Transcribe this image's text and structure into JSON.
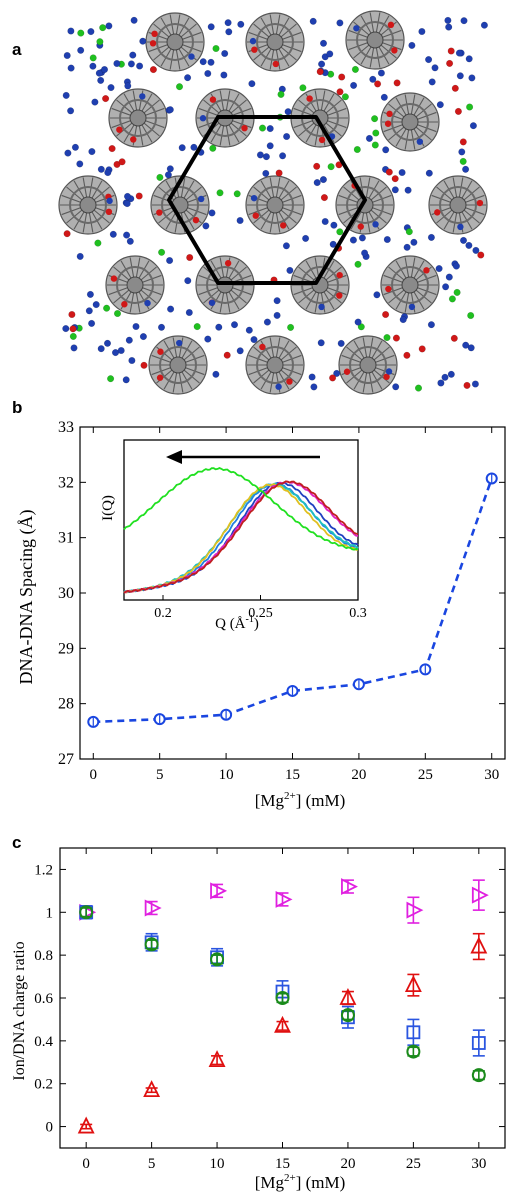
{
  "panels": {
    "a": "a",
    "b": "b",
    "c": "c"
  },
  "colors": {
    "dna": "#8a8a8a",
    "ion_blue": "#1f3fb0",
    "ion_red": "#d01818",
    "ion_green": "#1fc01f",
    "hexagon": "#000000",
    "panel_b_line": "#1a46e0",
    "series_red": "#e01010",
    "series_blue": "#2a55e0",
    "series_green": "#1a8a1a",
    "series_magenta": "#e020e0"
  },
  "chart_data": [
    {
      "panel": "b",
      "type": "line",
      "xlabel": "[Mg2+] (mM)",
      "xlabel_parts": {
        "pre": "[Mg",
        "sup": "2+",
        "post": "] (mM)"
      },
      "ylabel": "DNA-DNA Spacing (Å)",
      "x": [
        0,
        5,
        10,
        15,
        20,
        25,
        30
      ],
      "y": [
        27.67,
        27.72,
        27.8,
        28.23,
        28.35,
        28.62,
        32.07
      ],
      "xlim": [
        -1,
        31
      ],
      "ylim": [
        27,
        33
      ],
      "xticks": [
        0,
        5,
        10,
        15,
        20,
        25,
        30
      ],
      "yticks": [
        27,
        28,
        29,
        30,
        31,
        32,
        33
      ],
      "marker": "circle",
      "line_style": "dashed",
      "inset": {
        "type": "line",
        "xlabel": "Q (Å-1)",
        "xlabel_parts": {
          "pre": "Q (Å",
          "sup": "-1",
          "post": ")"
        },
        "ylabel": "I(Q)",
        "xlim": [
          0.18,
          0.3
        ],
        "xticks": [
          0.2,
          0.25,
          0.3
        ],
        "xtick_labels": [
          "0.2",
          "0.25",
          "0.3"
        ],
        "annotation": "arrow pointing left (toward lower Q)",
        "series": [
          {
            "color": "#2040c0",
            "peak": 0.259,
            "width": 0.02
          },
          {
            "color": "#2080e0",
            "peak": 0.256,
            "width": 0.02
          },
          {
            "color": "#20c0c0",
            "peak": 0.255,
            "width": 0.021
          },
          {
            "color": "#e0c020",
            "peak": 0.254,
            "width": 0.02
          },
          {
            "color": "#e020c0",
            "peak": 0.262,
            "width": 0.022
          },
          {
            "color": "#c02020",
            "peak": 0.263,
            "width": 0.022
          },
          {
            "color": "#20e020",
            "peak": 0.227,
            "width": 0.03
          }
        ]
      }
    },
    {
      "panel": "c",
      "type": "scatter",
      "xlabel": "[Mg2+] (mM)",
      "xlabel_parts": {
        "pre": "[Mg",
        "sup": "2+",
        "post": "] (mM)"
      },
      "ylabel": "Ion/DNA charge ratio",
      "xlim": [
        -2,
        32
      ],
      "ylim": [
        -0.1,
        1.3
      ],
      "xticks": [
        0,
        5,
        10,
        15,
        20,
        25,
        30
      ],
      "yticks": [
        0,
        0.2,
        0.4,
        0.6,
        0.8,
        1,
        1.2
      ],
      "ytick_labels": [
        "0",
        "0.2",
        "0.4",
        "0.6",
        "0.8",
        "1",
        "1.2"
      ],
      "series": [
        {
          "marker": "triangle-right",
          "color": "#e020e0",
          "x": [
            0,
            5,
            10,
            15,
            20,
            25,
            30
          ],
          "y": [
            1.0,
            1.02,
            1.1,
            1.06,
            1.12,
            1.01,
            1.08
          ],
          "err": [
            0.03,
            0.03,
            0.03,
            0.03,
            0.03,
            0.06,
            0.07
          ]
        },
        {
          "marker": "square",
          "color": "#2a55e0",
          "x": [
            0,
            5,
            10,
            15,
            20,
            25,
            30
          ],
          "y": [
            1.0,
            0.86,
            0.79,
            0.63,
            0.51,
            0.44,
            0.39
          ],
          "err": [
            0.03,
            0.04,
            0.04,
            0.05,
            0.05,
            0.06,
            0.06
          ]
        },
        {
          "marker": "circle",
          "color": "#1a8a1a",
          "x": [
            0,
            5,
            10,
            15,
            20,
            25,
            30
          ],
          "y": [
            1.0,
            0.85,
            0.78,
            0.6,
            0.52,
            0.35,
            0.24
          ],
          "err": [
            0.02,
            0.02,
            0.02,
            0.02,
            0.02,
            0.02,
            0.02
          ]
        },
        {
          "marker": "triangle-up",
          "color": "#e01010",
          "x": [
            0,
            5,
            10,
            15,
            20,
            25,
            30
          ],
          "y": [
            0.0,
            0.17,
            0.31,
            0.47,
            0.6,
            0.66,
            0.84
          ],
          "err": [
            0.01,
            0.01,
            0.02,
            0.02,
            0.03,
            0.05,
            0.06
          ]
        }
      ]
    }
  ]
}
